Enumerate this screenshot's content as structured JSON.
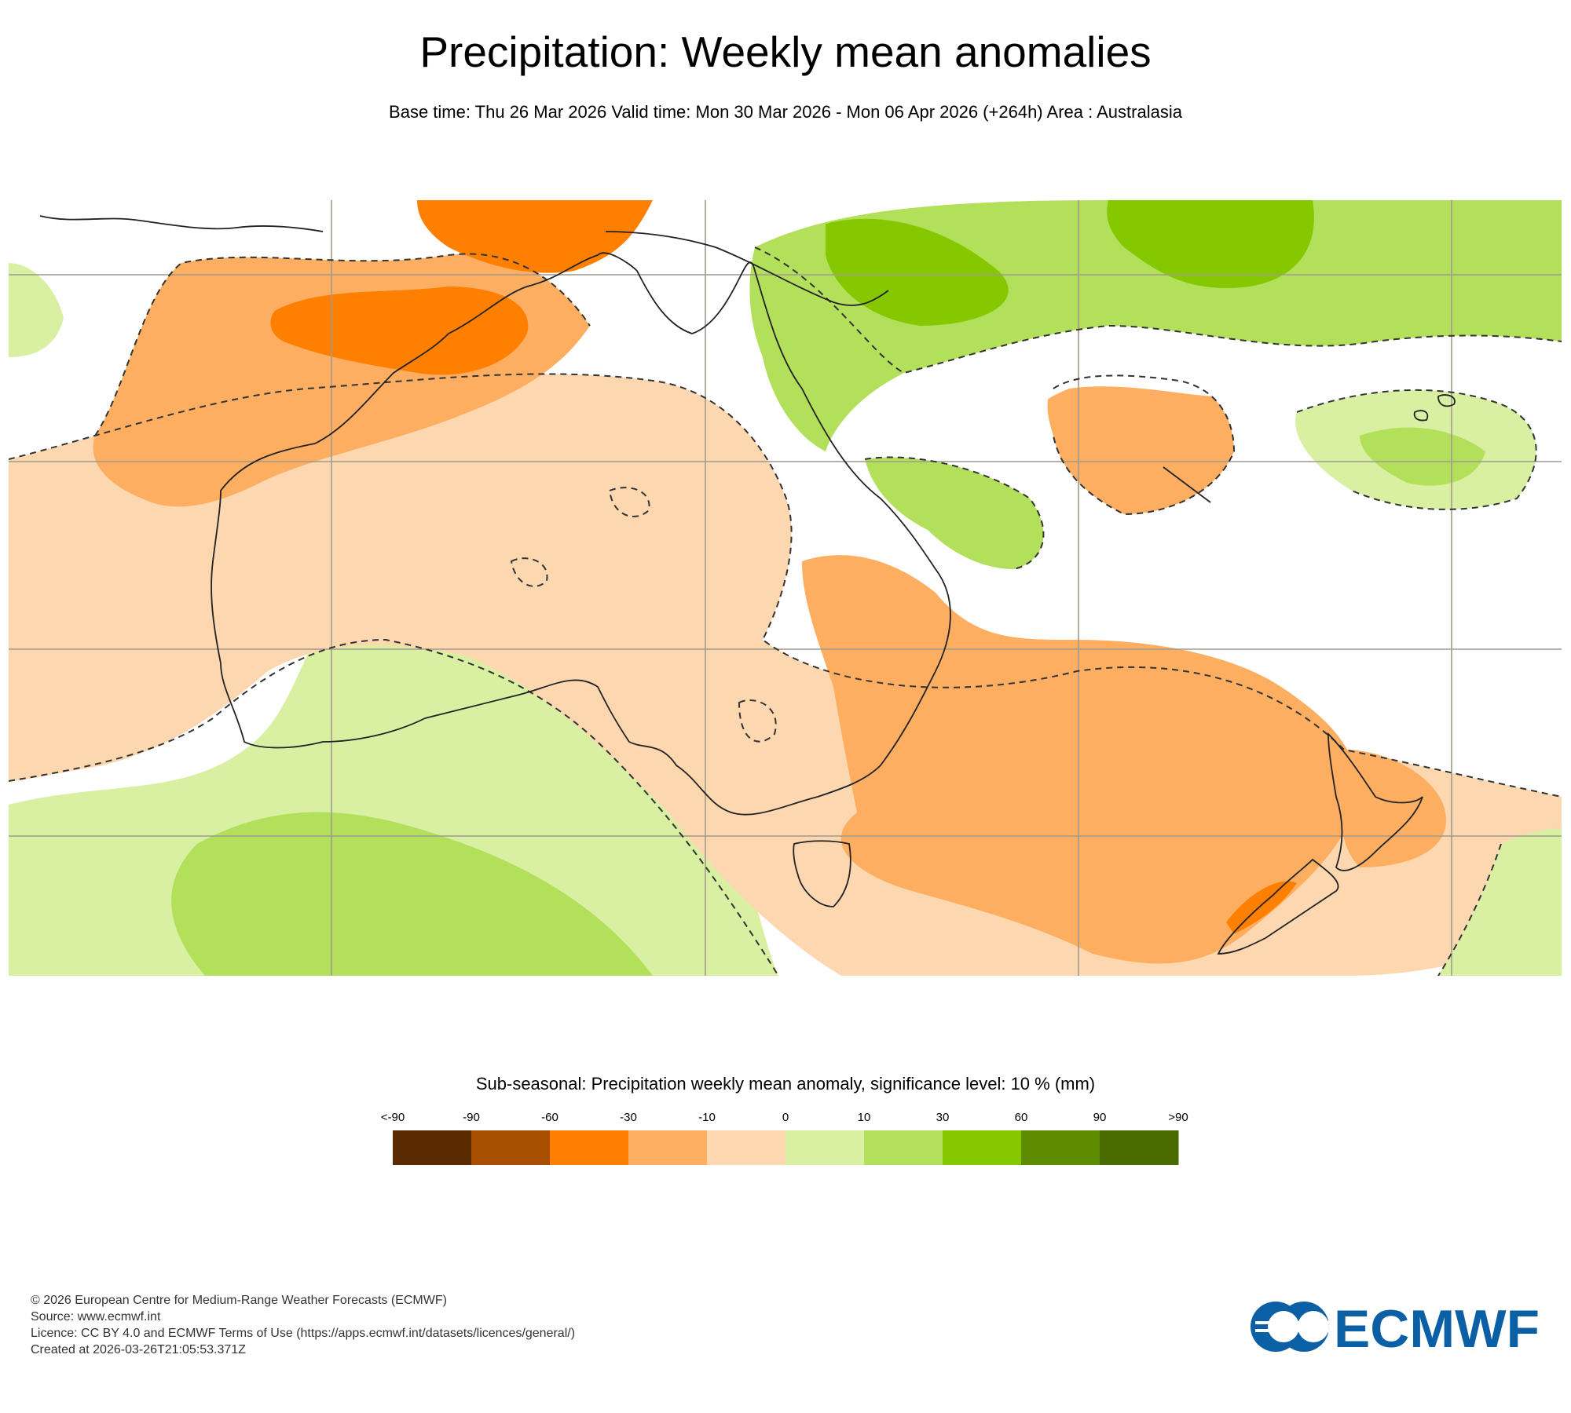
{
  "header": {
    "title": "Precipitation: Weekly mean anomalies",
    "subtitle": "Base time: Thu 26 Mar 2026 Valid time: Mon 30 Mar 2026 - Mon 06 Apr 2026 (+264h) Area : Australasia"
  },
  "legend": {
    "title": "Sub-seasonal: Precipitation weekly mean anomaly, significance level: 10 % (mm)",
    "tick_labels": [
      "<-90",
      "-90",
      "-60",
      "-30",
      "-10",
      "0",
      "10",
      "30",
      "60",
      "90",
      ">90"
    ],
    "colors": [
      "#5a2a00",
      "#a84e00",
      "#ff7f00",
      "#fdae61",
      "#fdd7b0",
      "#d9f0a3",
      "#b3e05a",
      "#86c800",
      "#5e8c00",
      "#4a6b00"
    ]
  },
  "map": {
    "area": "Australasia",
    "colors": {
      "ocean_neutral": "#ffffff",
      "gridline": "#a09a8e",
      "coastline": "#222222",
      "contour": "#333333"
    }
  },
  "footer": {
    "copyright": "© 2026 European Centre for Medium-Range Weather Forecasts (ECMWF)",
    "source": "Source: www.ecmwf.int",
    "licence": "Licence: CC BY 4.0 and ECMWF Terms of Use (https://apps.ecmwf.int/datasets/licences/general/)",
    "created": "Created at 2026-03-26T21:05:53.371Z"
  },
  "logo": {
    "text": "ECMWF",
    "color": "#0b5fa5"
  }
}
